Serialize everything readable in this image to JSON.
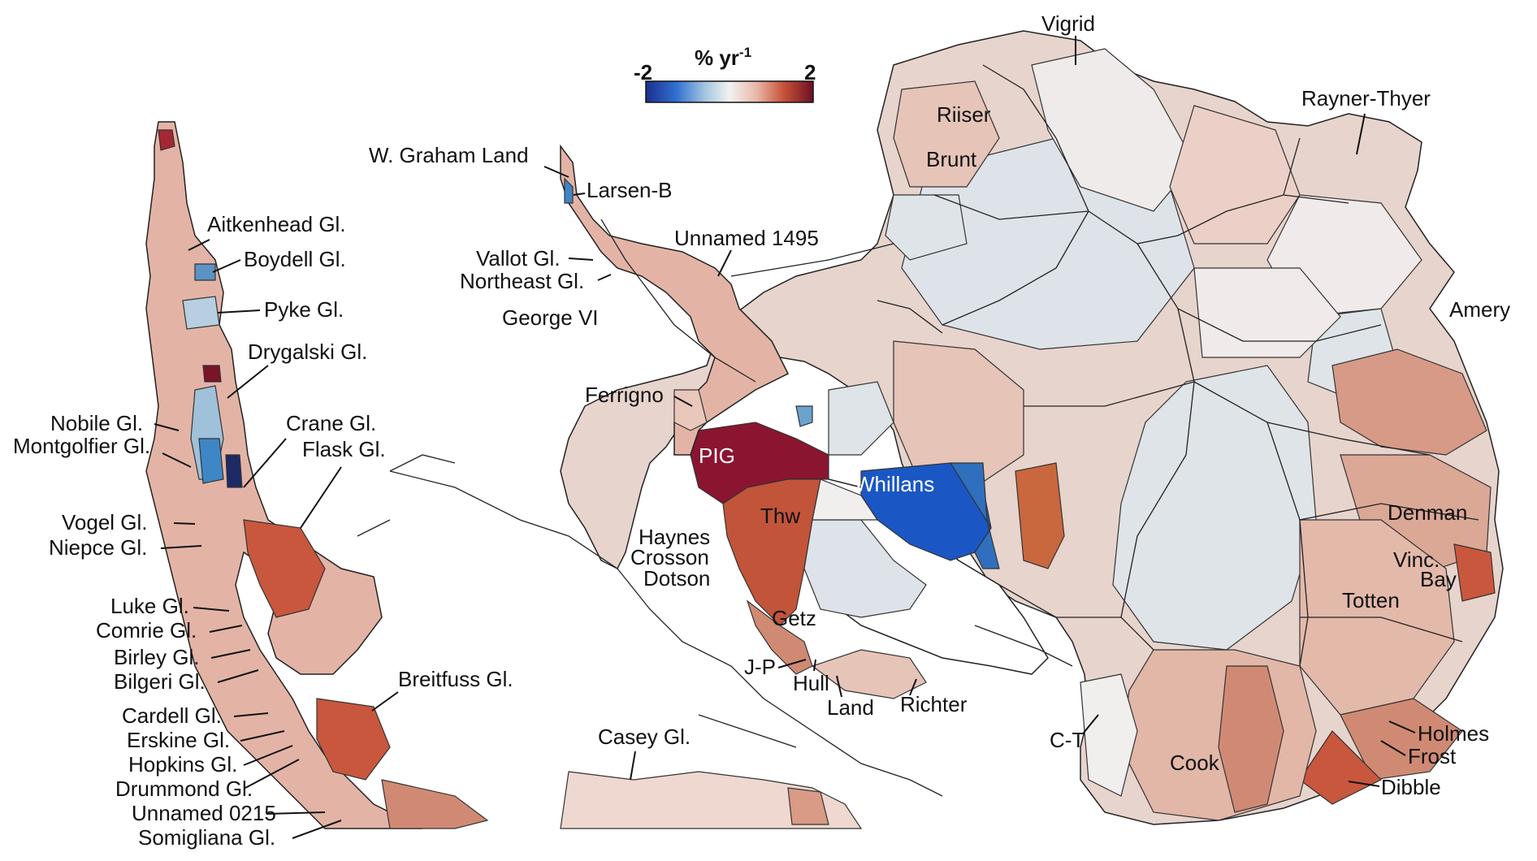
{
  "legend": {
    "title": "% yr",
    "title_sup": "-1",
    "min_label": "-2",
    "max_label": "2",
    "range": [
      -2,
      2
    ],
    "colors": [
      "#1c2f8c",
      "#2f6fd0",
      "#a8c8e0",
      "#f2f2f2",
      "#e9b8a8",
      "#c8553a",
      "#6e0f24"
    ]
  },
  "colors": {
    "deep_red": "#8b1530",
    "red": "#c9573d",
    "light_red": "#e3b4a6",
    "pale_red": "#edd5cd",
    "neutral": "#f1eeee",
    "pale_blue": "#dde3e8",
    "blue": "#3f86c6",
    "deep_blue": "#1b57c4",
    "navy": "#1d2a66"
  },
  "labels": {
    "peninsula": [
      "Aitkenhead Gl.",
      "Boydell Gl.",
      "Pyke Gl.",
      "Drygalski Gl.",
      "Nobile Gl.",
      "Montgolfier Gl.",
      "Crane Gl.",
      "Flask Gl.",
      "Vogel Gl.",
      "Niepce Gl.",
      "Luke Gl.",
      "Comrie Gl.",
      "Birley Gl.",
      "Bilgeri Gl.",
      "Breitfuss Gl.",
      "Cardell Gl.",
      "Erskine Gl.",
      "Hopkins Gl.",
      "Drummond Gl.",
      "Unnamed 0215",
      "Somigliana Gl.",
      "Casey Gl."
    ],
    "west": [
      "W. Graham Land",
      "Larsen-B",
      "Unnamed 1495",
      "Vallot Gl.",
      "Northeast Gl.",
      "George VI",
      "Ferrigno",
      "PIG",
      "Thw",
      "Haynes",
      "Crosson",
      "Dotson",
      "Getz",
      "J-P",
      "Hull",
      "Land",
      "Richter",
      "Whillans"
    ],
    "east": [
      "Vigrid",
      "Riiser",
      "Brunt",
      "Rayner-Thyer",
      "Amery",
      "Denman",
      "Vinc.",
      "Bay",
      "Totten",
      "Holmes",
      "Frost",
      "Dibble",
      "Cook",
      "C-T"
    ]
  }
}
